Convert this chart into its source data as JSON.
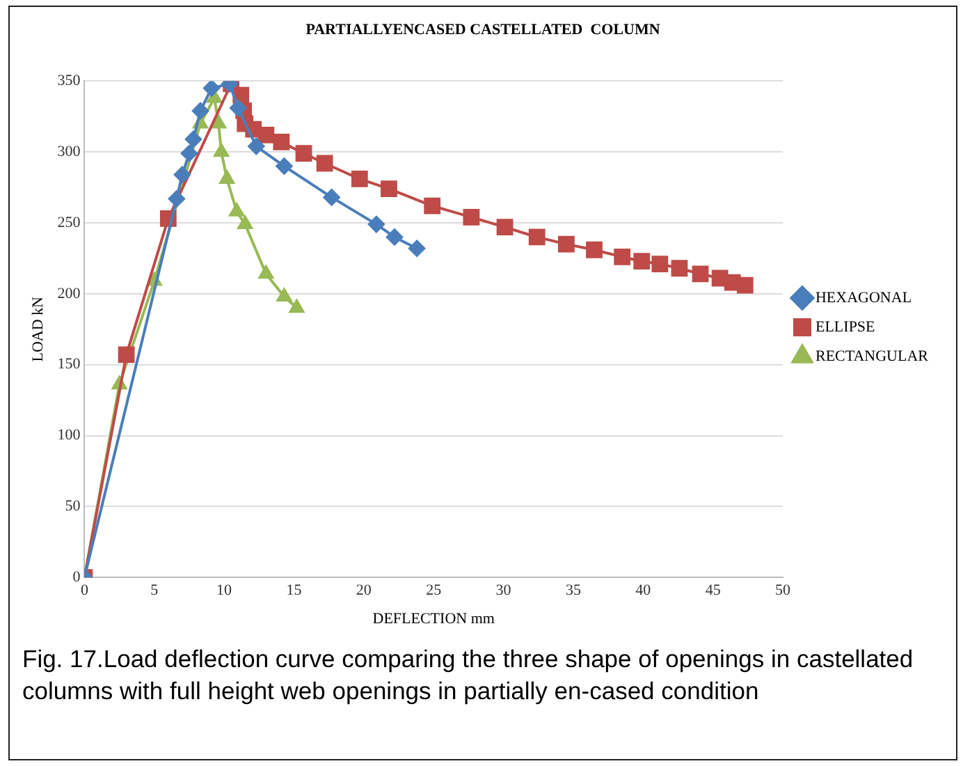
{
  "chart_data": {
    "type": "line",
    "title": "PARTIALLYENCASED CASTELLATED  COLUMN",
    "xlabel": "DEFLECTION mm",
    "ylabel": "LOAD kN",
    "xlim": [
      0,
      50
    ],
    "xticks": [
      0,
      5,
      10,
      15,
      20,
      25,
      30,
      35,
      40,
      45,
      50
    ],
    "ylim": [
      0,
      350
    ],
    "yticks": [
      0,
      50,
      100,
      150,
      200,
      250,
      300,
      350
    ],
    "grid": "y",
    "legend": "right",
    "line_style": "solid",
    "series": [
      {
        "name": "HEXAGONAL",
        "color": "#4a7ebb",
        "marker": "diamond",
        "x": [
          0,
          6.6,
          7,
          7.5,
          7.8,
          8.3,
          9.1,
          10.4,
          11,
          12.3,
          14.3,
          17.7,
          20.9,
          22.2,
          23.8
        ],
        "values": [
          0,
          267,
          284,
          299,
          309,
          329,
          345,
          348,
          331,
          304,
          290,
          268,
          249,
          240,
          232
        ]
      },
      {
        "name": "ELLIPSE",
        "color": "#be4b48",
        "marker": "square",
        "x": [
          0,
          3,
          6,
          10.5,
          11.2,
          11.4,
          11.5,
          12.1,
          13,
          14.1,
          15.7,
          17.2,
          19.7,
          21.8,
          24.9,
          27.7,
          30.1,
          32.4,
          34.5,
          36.5,
          38.5,
          39.9,
          41.2,
          42.6,
          44.1,
          45.5,
          46.4,
          47.3
        ],
        "values": [
          0,
          157,
          253,
          348,
          340,
          329,
          320,
          316,
          312,
          307,
          299,
          292,
          281,
          274,
          262,
          254,
          247,
          240,
          235,
          231,
          226,
          223,
          221,
          218,
          214,
          211,
          208,
          206
        ]
      },
      {
        "name": "RECTANGULAR",
        "color": "#98b954",
        "marker": "triangle",
        "x": [
          0,
          2.5,
          5,
          8.3,
          9.3,
          9.6,
          9.8,
          10.2,
          10.9,
          11.5,
          13,
          14.3,
          15.2
        ],
        "values": [
          0,
          136,
          209,
          320,
          338,
          320,
          300,
          281,
          258,
          249,
          214,
          198,
          190
        ]
      }
    ],
    "annotations": [
      "Fig. 17.Load deflection curve comparing the three shape of openings in castellated columns with full height web openings in partially en-cased condition"
    ]
  }
}
